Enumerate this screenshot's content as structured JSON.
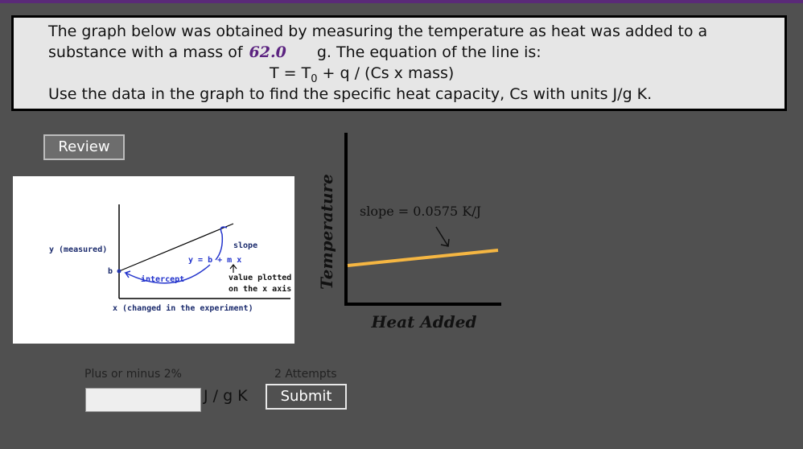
{
  "problem": {
    "line1": "The graph below was obtained by measuring the temperature as heat was added to a",
    "line2_before": "substance with a mass of",
    "mass": "62.0",
    "line2_after": "g.  The equation of the line is:",
    "equation": {
      "lhs": "T = T",
      "subscript": "0",
      "rhs": "+ q / (Cs x mass)"
    },
    "line4": "Use the data in the graph to find the specific heat capacity, Cs with units J/g K."
  },
  "review_button": "Review",
  "diagram": {
    "y_label": "y (measured)",
    "b_label": "b",
    "slope_label": "slope",
    "equation": "y = b + m x",
    "intercept_label": "intercept",
    "value_line1": "value plotted",
    "value_line2": "on the x axis",
    "x_label": "x (changed in the experiment)"
  },
  "graph": {
    "slope_label": "slope = 0.0575 K/J",
    "y_label": "Temperature",
    "x_label": "Heat Added"
  },
  "answer": {
    "tolerance": "Plus or minus 2%",
    "attempts": "2 Attempts",
    "units": "J / g K",
    "submit": "Submit"
  }
}
